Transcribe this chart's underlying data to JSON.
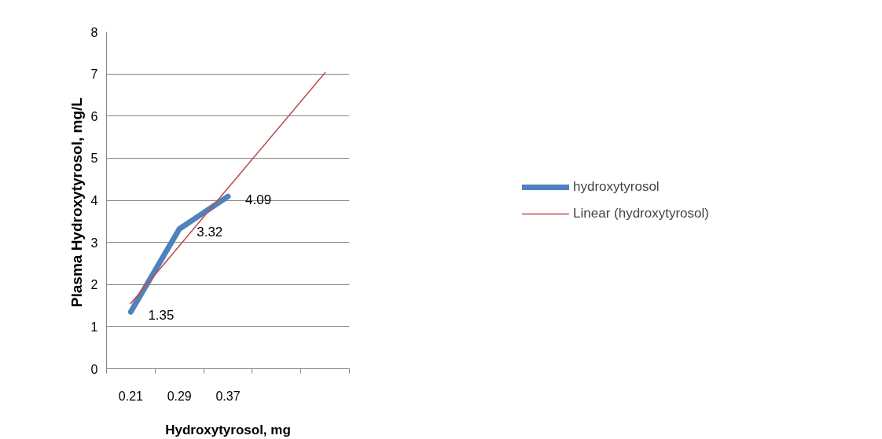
{
  "chart_data": {
    "type": "line",
    "xlabel": "Hydroxytyrosol, mg",
    "ylabel": "Plasma Hydroxytyrosol,  mg/L",
    "categories": [
      "0.21",
      "0.29",
      "0.37",
      null,
      null
    ],
    "ylim": [
      0,
      8
    ],
    "yticks": [
      0,
      1,
      2,
      3,
      4,
      5,
      6,
      7,
      8
    ],
    "grid": "y",
    "legend": "right",
    "marker": "none",
    "line_style": "solid",
    "series": [
      {
        "name": "hydroxytyrosol",
        "color": "#4f81bd",
        "values": [
          1.35,
          3.32,
          4.09,
          null,
          null
        ],
        "value_labels": [
          "1.35",
          "3.32",
          "4.09",
          null,
          null
        ]
      },
      {
        "name": "Linear (hydroxytyrosol)",
        "color": "#c0504d",
        "values": [
          1.55,
          2.92,
          4.29,
          5.66,
          7.03
        ]
      }
    ]
  }
}
